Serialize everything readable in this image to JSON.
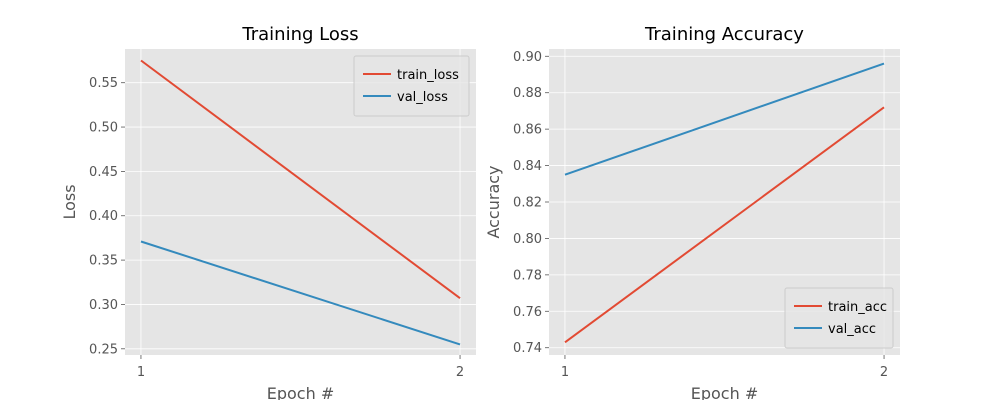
{
  "chart_data": [
    {
      "type": "line",
      "title": "Training Loss",
      "xlabel": "Epoch #",
      "ylabel": "Loss",
      "x": [
        1,
        2
      ],
      "xticks": [
        1,
        2
      ],
      "xlim": [
        0.95,
        2.05
      ],
      "ylim": [
        0.243,
        0.588
      ],
      "yticks": [
        0.25,
        0.3,
        0.35,
        0.4,
        0.45,
        0.5,
        0.55
      ],
      "ytick_labels": [
        "0.25",
        "0.30",
        "0.35",
        "0.40",
        "0.45",
        "0.50",
        "0.55"
      ],
      "grid": true,
      "legend_position": "top-right",
      "series": [
        {
          "name": "train_loss",
          "color": "#E24A33",
          "values": [
            0.575,
            0.307
          ]
        },
        {
          "name": "val_loss",
          "color": "#348ABD",
          "values": [
            0.371,
            0.255
          ]
        }
      ]
    },
    {
      "type": "line",
      "title": "Training Accuracy",
      "xlabel": "Epoch #",
      "ylabel": "Accuracy",
      "x": [
        1,
        2
      ],
      "xticks": [
        1,
        2
      ],
      "xlim": [
        0.95,
        2.05
      ],
      "ylim": [
        0.736,
        0.904
      ],
      "yticks": [
        0.74,
        0.76,
        0.78,
        0.8,
        0.82,
        0.84,
        0.86,
        0.88,
        0.9
      ],
      "ytick_labels": [
        "0.74",
        "0.76",
        "0.78",
        "0.80",
        "0.82",
        "0.84",
        "0.86",
        "0.88",
        "0.90"
      ],
      "grid": true,
      "legend_position": "bottom-right",
      "series": [
        {
          "name": "train_acc",
          "color": "#E24A33",
          "values": [
            0.743,
            0.872
          ]
        },
        {
          "name": "val_acc",
          "color": "#348ABD",
          "values": [
            0.835,
            0.896
          ]
        }
      ]
    }
  ],
  "style": {
    "plot_background": "#E5E5E5",
    "grid_color": "#FFFFFF",
    "text_color": "#555555",
    "title_color": "#000000"
  }
}
